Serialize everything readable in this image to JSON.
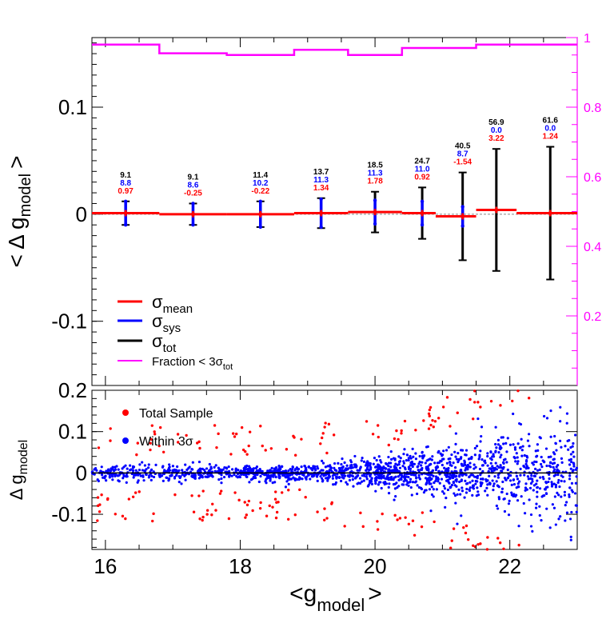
{
  "chart_data": [
    {
      "type": "errorbar",
      "panel": "top",
      "ylabel_main": "< Δ g",
      "ylabel_sub": "model",
      "ylabel_close": ">",
      "xlim": [
        15.8,
        23.0
      ],
      "ylim": [
        -0.16,
        0.165
      ],
      "yticks": [
        -0.1,
        0,
        0.1
      ],
      "ytick_labels": [
        "-0.1",
        "0",
        "0.1"
      ],
      "right_axis": {
        "ylim": [
          0,
          1
        ],
        "color": "#ff00ff",
        "ticks": [
          0.2,
          0.4,
          0.6,
          0.8,
          1
        ],
        "tick_labels": [
          "0.2",
          "0.4",
          "0.6",
          "0.8",
          "1"
        ]
      },
      "bins": [
        {
          "x": 16.3,
          "lo": 15.8,
          "hi": 16.8,
          "mean": 0.001,
          "sys": 0.011,
          "tot": 0.011,
          "labels": [
            "9.1",
            "8.8",
            "0.97"
          ]
        },
        {
          "x": 17.3,
          "lo": 16.8,
          "hi": 17.8,
          "mean": 0.0,
          "sys": 0.01,
          "tot": 0.01,
          "labels": [
            "9.1",
            "8.6",
            "-0.25"
          ]
        },
        {
          "x": 18.3,
          "lo": 17.8,
          "hi": 18.8,
          "mean": 0.0,
          "sys": 0.012,
          "tot": 0.012,
          "labels": [
            "11.4",
            "10.2",
            "-0.22"
          ]
        },
        {
          "x": 19.2,
          "lo": 18.8,
          "hi": 19.6,
          "mean": 0.001,
          "sys": 0.013,
          "tot": 0.014,
          "labels": [
            "13.7",
            "11.3",
            "1.34"
          ]
        },
        {
          "x": 20.0,
          "lo": 19.6,
          "hi": 20.4,
          "mean": 0.002,
          "sys": 0.011,
          "tot": 0.019,
          "labels": [
            "18.5",
            "11.3",
            "1.78"
          ]
        },
        {
          "x": 20.7,
          "lo": 20.4,
          "hi": 20.9,
          "mean": 0.001,
          "sys": 0.011,
          "tot": 0.024,
          "labels": [
            "24.7",
            "11.0",
            "0.92"
          ]
        },
        {
          "x": 21.3,
          "lo": 20.9,
          "hi": 21.5,
          "mean": -0.002,
          "sys": 0.009,
          "tot": 0.041,
          "labels": [
            "40.5",
            "8.7",
            "-1.54"
          ]
        },
        {
          "x": 21.8,
          "lo": 21.5,
          "hi": 22.1,
          "mean": 0.004,
          "sys": 0.0,
          "tot": 0.057,
          "labels": [
            "56.9",
            "0.0",
            "3.22"
          ]
        },
        {
          "x": 22.6,
          "lo": 22.1,
          "hi": 23.0,
          "mean": 0.001,
          "sys": 0.0,
          "tot": 0.062,
          "labels": [
            "61.6",
            "0.0",
            "1.24"
          ]
        }
      ],
      "fraction_steps": [
        {
          "lo": 15.8,
          "hi": 16.8,
          "f": 0.98
        },
        {
          "lo": 16.8,
          "hi": 17.8,
          "f": 0.955
        },
        {
          "lo": 17.8,
          "hi": 18.8,
          "f": 0.95
        },
        {
          "lo": 18.8,
          "hi": 19.6,
          "f": 0.965
        },
        {
          "lo": 19.6,
          "hi": 20.4,
          "f": 0.95
        },
        {
          "lo": 20.4,
          "hi": 21.5,
          "f": 0.97
        },
        {
          "lo": 21.5,
          "hi": 23.0,
          "f": 0.98
        }
      ],
      "legend": [
        {
          "symbol": "σ",
          "sub": "mean",
          "color": "#ff0000"
        },
        {
          "symbol": "σ",
          "sub": "sys",
          "color": "#0000ff"
        },
        {
          "symbol": "σ",
          "sub": "tot",
          "color": "#000000"
        },
        {
          "text": "Fraction < 3σ",
          "sub": "tot",
          "color": "#ff00ff"
        }
      ],
      "colors": {
        "mean": "#ff0000",
        "sys": "#0000ff",
        "tot": "#000000",
        "fraction": "#ff00ff"
      }
    },
    {
      "type": "scatter",
      "panel": "bottom",
      "xlabel_main": "<g",
      "xlabel_sub": "model",
      "xlabel_close": ">",
      "ylabel_main": "Δ g",
      "ylabel_sub": "model",
      "xlim": [
        15.8,
        23.0
      ],
      "ylim": [
        -0.185,
        0.2
      ],
      "xticks": [
        16,
        18,
        20,
        22
      ],
      "xtick_labels": [
        "16",
        "18",
        "20",
        "22"
      ],
      "yticks": [
        -0.1,
        0,
        0.1,
        0.2
      ],
      "ytick_labels": [
        "-0.1",
        "0",
        "0.1",
        "0.2"
      ],
      "series": [
        {
          "name": "Total Sample",
          "color": "#ff0000"
        },
        {
          "name": "Within 3σ",
          "color": "#0000ff"
        }
      ],
      "sample_size": {
        "blue": 1700,
        "red": 230
      }
    }
  ]
}
